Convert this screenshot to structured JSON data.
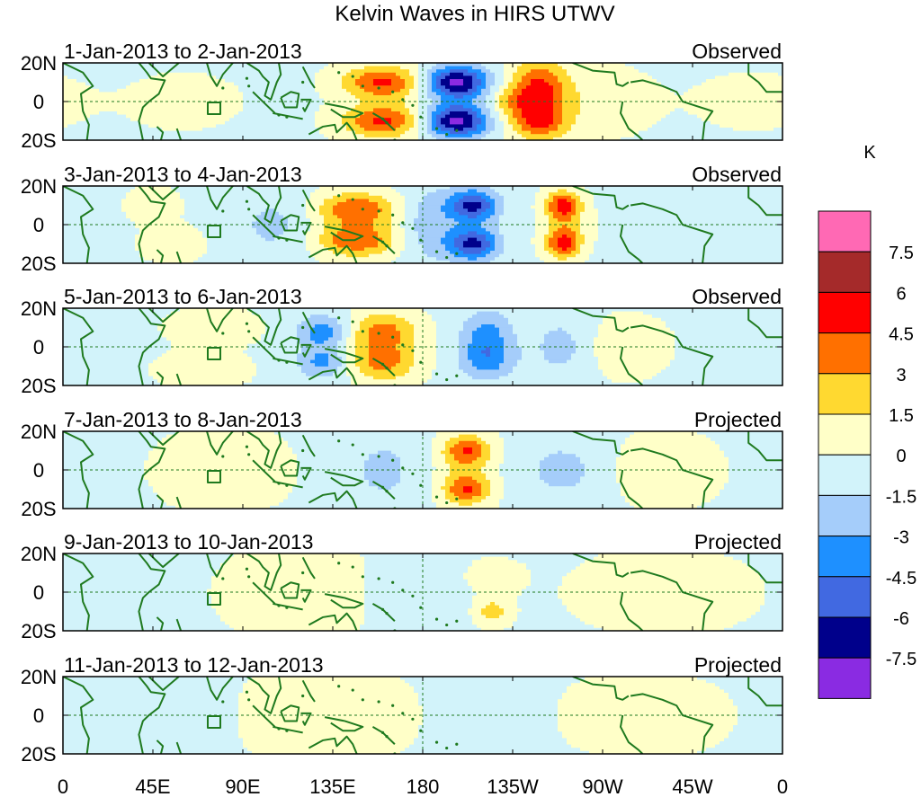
{
  "chart_data": {
    "type": "heatmap",
    "title": "Kelvin Waves in HIRS UTWV",
    "units": "K",
    "x_ticks": [
      "0",
      "45E",
      "90E",
      "135E",
      "180",
      "135W",
      "90W",
      "45W",
      "0"
    ],
    "x_range_deg_east": [
      0,
      360
    ],
    "y_ticks": [
      "20N",
      "0",
      "20S"
    ],
    "y_range_deg": [
      -20,
      20
    ],
    "colorbar": {
      "label": "K",
      "levels": [
        "7.5",
        "6",
        "4.5",
        "3",
        "1.5",
        "0",
        "-1.5",
        "-3",
        "-4.5",
        "-6",
        "-7.5"
      ],
      "colors": [
        "#ff69b4",
        "#a52a2a",
        "#ff0000",
        "#ff7000",
        "#ffd930",
        "#ffffc8",
        "#d2f3fa",
        "#a5cdfa",
        "#1e90ff",
        "#4169e1",
        "#00008b",
        "#8a2be2"
      ]
    },
    "panels": [
      {
        "period": "1-Jan-2013 to 2-Jan-2013",
        "status": "Observed",
        "features": [
          {
            "lon": 160,
            "lat": 10,
            "value": 5.0,
            "sx": 14,
            "sy": 6
          },
          {
            "lon": 160,
            "lat": -10,
            "value": 5.0,
            "sx": 14,
            "sy": 6
          },
          {
            "lon": 197,
            "lat": 10,
            "value": -7.8,
            "sx": 11,
            "sy": 6
          },
          {
            "lon": 197,
            "lat": -10,
            "value": -7.8,
            "sx": 11,
            "sy": 6
          },
          {
            "lon": 238,
            "lat": 8,
            "value": 4.8,
            "sx": 10,
            "sy": 9
          },
          {
            "lon": 238,
            "lat": -10,
            "value": 4.8,
            "sx": 10,
            "sy": 7
          },
          {
            "lon": 225,
            "lat": 0,
            "value": 2.0,
            "sx": 8,
            "sy": 5
          },
          {
            "lon": 265,
            "lat": 0,
            "value": 1.2,
            "sx": 20,
            "sy": 12
          },
          {
            "lon": 60,
            "lat": 0,
            "value": 0.8,
            "sx": 20,
            "sy": 10
          },
          {
            "lon": 345,
            "lat": 0,
            "value": 0.8,
            "sx": 20,
            "sy": 10
          }
        ]
      },
      {
        "period": "3-Jan-2013 to 4-Jan-2013",
        "status": "Observed",
        "features": [
          {
            "lon": 147,
            "lat": 8,
            "value": 4.6,
            "sx": 14,
            "sy": 6
          },
          {
            "lon": 147,
            "lat": -8,
            "value": 4.6,
            "sx": 14,
            "sy": 6
          },
          {
            "lon": 183,
            "lat": 0,
            "value": -2.2,
            "sx": 9,
            "sy": 14
          },
          {
            "lon": 205,
            "lat": 10,
            "value": -6.2,
            "sx": 9,
            "sy": 6
          },
          {
            "lon": 205,
            "lat": -10,
            "value": -6.2,
            "sx": 9,
            "sy": 6
          },
          {
            "lon": 250,
            "lat": 10,
            "value": 4.6,
            "sx": 6,
            "sy": 5
          },
          {
            "lon": 250,
            "lat": -10,
            "value": 4.6,
            "sx": 6,
            "sy": 5
          },
          {
            "lon": 252,
            "lat": 0,
            "value": 2.0,
            "sx": 7,
            "sy": 10
          },
          {
            "lon": 45,
            "lat": 10,
            "value": 1.5,
            "sx": 8,
            "sy": 6
          },
          {
            "lon": 55,
            "lat": -10,
            "value": 1.4,
            "sx": 10,
            "sy": 6
          },
          {
            "lon": 105,
            "lat": 0,
            "value": -1.6,
            "sx": 14,
            "sy": 12
          }
        ]
      },
      {
        "period": "5-Jan-2013 to 6-Jan-2013",
        "status": "Observed",
        "features": [
          {
            "lon": 160,
            "lat": 8,
            "value": 3.8,
            "sx": 12,
            "sy": 7
          },
          {
            "lon": 160,
            "lat": -8,
            "value": 3.8,
            "sx": 12,
            "sy": 7
          },
          {
            "lon": 130,
            "lat": 8,
            "value": -3.6,
            "sx": 9,
            "sy": 6
          },
          {
            "lon": 130,
            "lat": -8,
            "value": -3.2,
            "sx": 9,
            "sy": 6
          },
          {
            "lon": 212,
            "lat": 5,
            "value": -3.4,
            "sx": 9,
            "sy": 10
          },
          {
            "lon": 212,
            "lat": -8,
            "value": -2.4,
            "sx": 10,
            "sy": 7
          },
          {
            "lon": 75,
            "lat": 10,
            "value": 1.6,
            "sx": 14,
            "sy": 6
          },
          {
            "lon": 70,
            "lat": -12,
            "value": 1.6,
            "sx": 14,
            "sy": 6
          },
          {
            "lon": 280,
            "lat": 0,
            "value": 1.6,
            "sx": 14,
            "sy": 10
          },
          {
            "lon": 250,
            "lat": 0,
            "value": -1.8,
            "sx": 12,
            "sy": 12
          }
        ]
      },
      {
        "period": "7-Jan-2013 to 8-Jan-2013",
        "status": "Projected",
        "features": [
          {
            "lon": 202,
            "lat": 10,
            "value": 3.8,
            "sx": 8,
            "sy": 5
          },
          {
            "lon": 202,
            "lat": -10,
            "value": 3.8,
            "sx": 8,
            "sy": 5
          },
          {
            "lon": 202,
            "lat": 0,
            "value": 1.6,
            "sx": 10,
            "sy": 14
          },
          {
            "lon": 160,
            "lat": 0,
            "value": -1.6,
            "sx": 14,
            "sy": 14
          },
          {
            "lon": 250,
            "lat": 0,
            "value": -1.7,
            "sx": 16,
            "sy": 12
          },
          {
            "lon": 80,
            "lat": 0,
            "value": 1.2,
            "sx": 22,
            "sy": 14
          },
          {
            "lon": 300,
            "lat": 0,
            "value": 1.4,
            "sx": 18,
            "sy": 12
          }
        ]
      },
      {
        "period": "9-Jan-2013 to 10-Jan-2013",
        "status": "Projected",
        "features": [
          {
            "lon": 125,
            "lat": 0,
            "value": 1.4,
            "sx": 28,
            "sy": 16
          },
          {
            "lon": 215,
            "lat": -10,
            "value": 2.5,
            "sx": 6,
            "sy": 5
          },
          {
            "lon": 215,
            "lat": 8,
            "value": 1.2,
            "sx": 10,
            "sy": 6
          },
          {
            "lon": 170,
            "lat": 0,
            "value": -1.0,
            "sx": 20,
            "sy": 14
          },
          {
            "lon": 300,
            "lat": 0,
            "value": 1.1,
            "sx": 30,
            "sy": 14
          }
        ]
      },
      {
        "period": "11-Jan-2013 to 12-Jan-2013",
        "status": "Projected",
        "features": [
          {
            "lon": 130,
            "lat": 0,
            "value": 1.2,
            "sx": 30,
            "sy": 16
          },
          {
            "lon": 40,
            "lat": 0,
            "value": -1.0,
            "sx": 25,
            "sy": 14
          },
          {
            "lon": 215,
            "lat": 0,
            "value": -1.0,
            "sx": 15,
            "sy": 14
          },
          {
            "lon": 290,
            "lat": 0,
            "value": 1.0,
            "sx": 30,
            "sy": 14
          }
        ]
      }
    ]
  }
}
